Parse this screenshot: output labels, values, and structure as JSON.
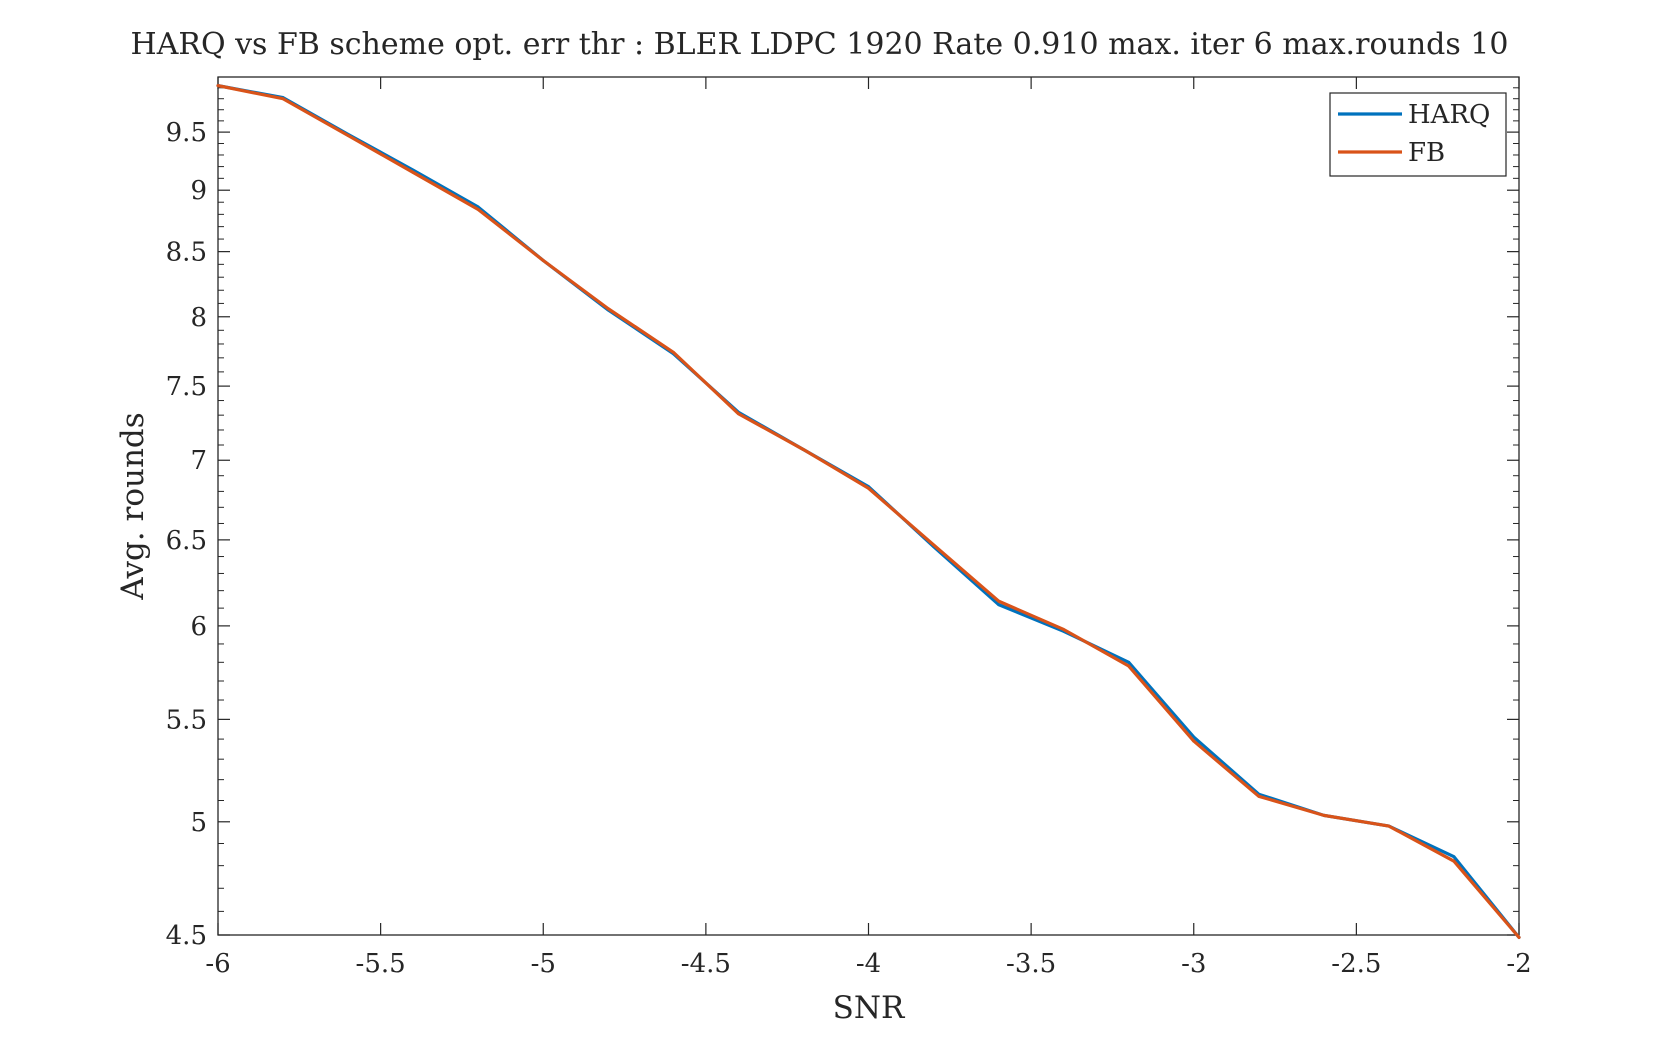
{
  "chart_data": {
    "type": "line",
    "title": "HARQ vs FB scheme opt. err thr : BLER LDPC 1920 Rate 0.910 max. iter 6 max.rounds 10",
    "xlabel": "SNR",
    "ylabel": "Avg. rounds",
    "xlim": [
      -6,
      -2
    ],
    "ylim": [
      4.5,
      10
    ],
    "yscale": "log",
    "xticks": [
      -6,
      -5.5,
      -5,
      -4.5,
      -4,
      -3.5,
      -3,
      -2.5,
      -2
    ],
    "xtick_labels": [
      "-6",
      "-5.5",
      "-5",
      "-4.5",
      "-4",
      "-3.5",
      "-3",
      "-2.5",
      "-2"
    ],
    "yticks": [
      4.5,
      5,
      5.5,
      6,
      6.5,
      7,
      7.5,
      8,
      8.5,
      9,
      9.5
    ],
    "ytick_labels": [
      "4.5",
      "5",
      "5.5",
      "6",
      "6.5",
      "7",
      "7.5",
      "8",
      "8.5",
      "9",
      "9.5"
    ],
    "grid": false,
    "box": true,
    "legend_position": "top-right",
    "x": [
      -6,
      -5.8,
      -5.6,
      -5.4,
      -5.2,
      -5.0,
      -4.8,
      -4.6,
      -4.4,
      -4.2,
      -4.0,
      -3.8,
      -3.6,
      -3.4,
      -3.2,
      -3.0,
      -2.8,
      -2.6,
      -2.4,
      -2.2,
      -2.0
    ],
    "series": [
      {
        "name": "HARQ",
        "color": "#0072BD",
        "values": [
          9.92,
          9.81,
          9.48,
          9.17,
          8.86,
          8.43,
          8.05,
          7.73,
          7.32,
          7.07,
          6.83,
          6.46,
          6.12,
          5.97,
          5.8,
          5.41,
          5.13,
          5.03,
          4.98,
          4.84,
          4.49
        ]
      },
      {
        "name": "FB",
        "color": "#D95319",
        "values": [
          9.92,
          9.8,
          9.47,
          9.15,
          8.84,
          8.43,
          8.06,
          7.74,
          7.31,
          7.07,
          6.82,
          6.47,
          6.14,
          5.98,
          5.78,
          5.39,
          5.12,
          5.03,
          4.98,
          4.82,
          4.49
        ]
      }
    ]
  }
}
